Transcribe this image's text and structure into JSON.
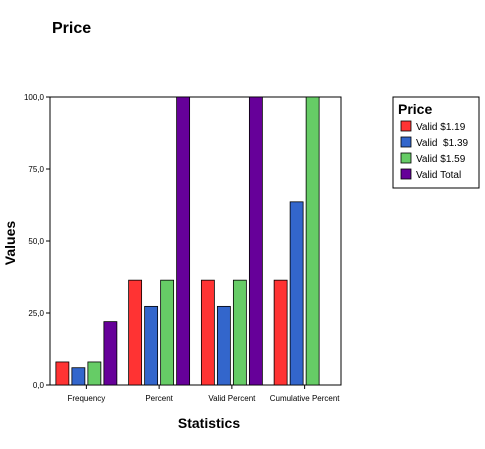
{
  "chart_data": {
    "type": "bar",
    "title": "Price",
    "xlabel": "Statistics",
    "ylabel": "Values",
    "categories": [
      "Frequency",
      "Percent",
      "Valid Percent",
      "Cumulative Percent"
    ],
    "series": [
      {
        "name": "Valid $1.19",
        "color": "#ff3333",
        "values": [
          8,
          36.4,
          36.4,
          36.4
        ]
      },
      {
        "name": "Valid  $1.39",
        "color": "#3366cc",
        "values": [
          6,
          27.3,
          27.3,
          63.6
        ]
      },
      {
        "name": "Valid $1.59",
        "color": "#66cc66",
        "values": [
          8,
          36.4,
          36.4,
          100
        ]
      },
      {
        "name": "Valid Total",
        "color": "#660099",
        "values": [
          22,
          100,
          100,
          null
        ]
      }
    ],
    "ylim": [
      0,
      100
    ],
    "yticks": [
      "0,0",
      "25,0",
      "50,0",
      "75,0",
      "100,0"
    ],
    "ytick_values": [
      0,
      25,
      50,
      75,
      100
    ],
    "grid": false,
    "legend": {
      "title": "Price",
      "placement": "right"
    }
  }
}
